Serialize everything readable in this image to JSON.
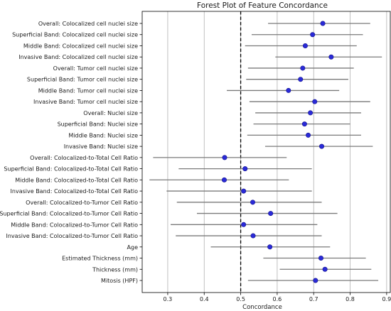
{
  "chart_data": {
    "type": "forest",
    "title": "Forest Plot of Feature Concordance",
    "xlabel": "Concordance",
    "ylabel": "",
    "xlim": [
      0.23,
      0.91
    ],
    "xticks": [
      0.3,
      0.4,
      0.5,
      0.6,
      0.7,
      0.8,
      0.9
    ],
    "xtick_labels": [
      "0.3",
      "0.4",
      "0.5",
      "0.6",
      "0.7",
      "0.8",
      "0.9"
    ],
    "reference_line": 0.5,
    "grid": "vertical",
    "colors": {
      "point": "#2a2ad8",
      "ci": "#7a7a7a",
      "reference": "#000000",
      "grid": "#b0b0b0"
    },
    "features": [
      {
        "label": "Overall: Colocalized cell nuclei size",
        "value": 0.725,
        "ci": [
          0.575,
          0.855
        ]
      },
      {
        "label": "Superficial Band: Colocalized cell nuclei size",
        "value": 0.697,
        "ci": [
          0.53,
          0.835
        ]
      },
      {
        "label": "Middle Band: Colocalized cell nuclei size",
        "value": 0.677,
        "ci": [
          0.512,
          0.818
        ]
      },
      {
        "label": "Invasive Band: Colocalized cell nuclei size",
        "value": 0.748,
        "ci": [
          0.595,
          0.887
        ]
      },
      {
        "label": "Overall: Tumor cell nuclei size",
        "value": 0.67,
        "ci": [
          0.52,
          0.81
        ]
      },
      {
        "label": "Superficial Band: Tumor cell nuclei size",
        "value": 0.664,
        "ci": [
          0.515,
          0.795
        ]
      },
      {
        "label": "Middle Band: Tumor cell nuclei size",
        "value": 0.631,
        "ci": [
          0.462,
          0.77
        ]
      },
      {
        "label": "Invasive Band: Tumor cell nuclei size",
        "value": 0.703,
        "ci": [
          0.524,
          0.855
        ]
      },
      {
        "label": "Overall: Nuclei size",
        "value": 0.691,
        "ci": [
          0.54,
          0.83
        ]
      },
      {
        "label": "Superficial Band: Nuclei size",
        "value": 0.675,
        "ci": [
          0.535,
          0.8
        ]
      },
      {
        "label": "Middle Band: Nuclei size",
        "value": 0.685,
        "ci": [
          0.518,
          0.83
        ]
      },
      {
        "label": "Invasive Band: Nuclei size",
        "value": 0.722,
        "ci": [
          0.567,
          0.862
        ]
      },
      {
        "label": "Overall: Colocalized-to-Total Cell Ratio",
        "value": 0.456,
        "ci": [
          0.26,
          0.626
        ]
      },
      {
        "label": "Superficial Band: Colocalized-to-Total Cell Ratio",
        "value": 0.512,
        "ci": [
          0.33,
          0.695
        ]
      },
      {
        "label": "Middle Band: Colocalized-to-Total Cell Ratio",
        "value": 0.455,
        "ci": [
          0.25,
          0.632
        ]
      },
      {
        "label": "Invasive Band: Colocalized-to-Total Cell Ratio",
        "value": 0.508,
        "ci": [
          0.297,
          0.695
        ]
      },
      {
        "label": "Overall: Colocalized-to-Tumor Cell Ratio",
        "value": 0.533,
        "ci": [
          0.325,
          0.722
        ]
      },
      {
        "label": "Superficial Band: Colocalized-to-Tumor Cell Ratio",
        "value": 0.582,
        "ci": [
          0.38,
          0.765
        ]
      },
      {
        "label": "Middle Band: Colocalized-to-Tumor Cell Ratio",
        "value": 0.508,
        "ci": [
          0.308,
          0.71
        ]
      },
      {
        "label": "Invasive Band: Colocalized-to-Tumor Cell Ratio",
        "value": 0.534,
        "ci": [
          0.322,
          0.722
        ]
      },
      {
        "label": "Age",
        "value": 0.58,
        "ci": [
          0.418,
          0.745
        ]
      },
      {
        "label": "Estimated Thickness (mm)",
        "value": 0.72,
        "ci": [
          0.562,
          0.843
        ]
      },
      {
        "label": "Thickness (mm)",
        "value": 0.731,
        "ci": [
          0.607,
          0.858
        ]
      },
      {
        "label": "Mitosis (HPF)",
        "value": 0.705,
        "ci": [
          0.52,
          0.877
        ]
      }
    ]
  }
}
